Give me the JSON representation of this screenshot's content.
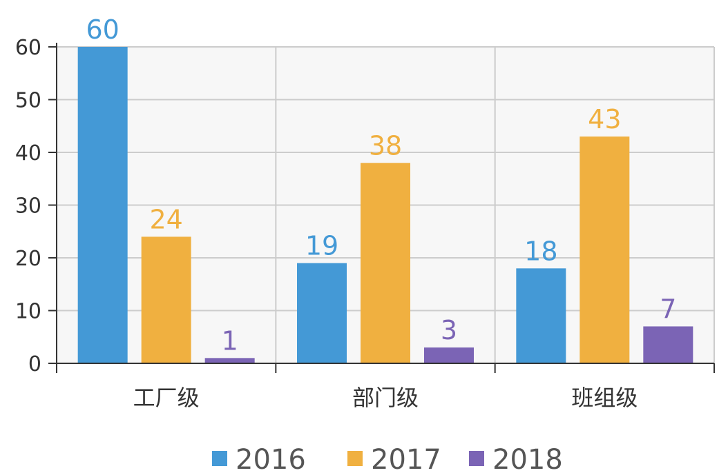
{
  "chart_data": {
    "type": "bar",
    "categories": [
      "工厂级",
      "部门级",
      "班组级"
    ],
    "series": [
      {
        "name": "2016",
        "values": [
          60,
          19,
          18
        ],
        "color": "#4499d6"
      },
      {
        "name": "2017",
        "values": [
          24,
          38,
          43
        ],
        "color": "#f0b040"
      },
      {
        "name": "2018",
        "values": [
          1,
          3,
          7
        ],
        "color": "#7b64b5"
      }
    ],
    "ylim": [
      0,
      60
    ],
    "yticks": [
      "0",
      "10",
      "20",
      "30",
      "40",
      "50",
      "60"
    ],
    "grid": true,
    "legend_position": "bottom",
    "data_labels": true,
    "plot_background": "#f7f7f7",
    "grid_color": "#cccccc",
    "axis_color": "#333333"
  }
}
